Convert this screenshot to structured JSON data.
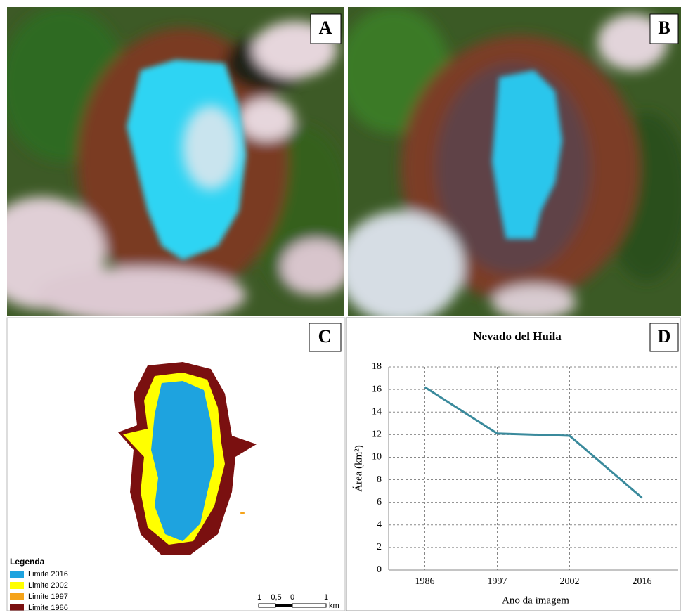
{
  "panels": {
    "a": "A",
    "b": "B",
    "c": "C",
    "d": "D"
  },
  "legend": {
    "title": "Legenda",
    "items": [
      {
        "label": "Limite 2016",
        "color": "#1ea3df"
      },
      {
        "label": "Limite 2002",
        "color": "#ffff00"
      },
      {
        "label": "Limite 1997",
        "color": "#f5a31a"
      },
      {
        "label": "Limite 1986",
        "color": "#7a1010"
      }
    ]
  },
  "scale_bar": {
    "labels": [
      "1",
      "0,5",
      "0",
      "1"
    ],
    "unit": "km"
  },
  "chart_data": {
    "type": "line",
    "title": "Nevado del Huila",
    "x_label": "Ano da imagem",
    "y_label": "Área (km²)",
    "categories": [
      "1986",
      "1997",
      "2002",
      "2016"
    ],
    "values": [
      16.2,
      12.1,
      11.9,
      6.4
    ],
    "color": "#3a8a9c",
    "ylim": [
      0,
      18
    ],
    "yticks": [
      0,
      2,
      4,
      6,
      8,
      10,
      12,
      14,
      16,
      18
    ],
    "grid": true
  }
}
